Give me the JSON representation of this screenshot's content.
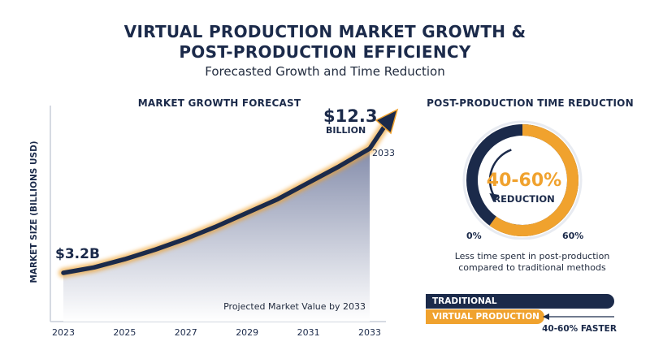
{
  "header": {
    "title_line1": "VIRTUAL PRODUCTION MARKET GROWTH &",
    "title_line2": "POST-PRODUCTION EFFICIENCY",
    "subtitle": "Forecasted Growth and Time Reduction"
  },
  "colors": {
    "navy": "#1b2a4a",
    "orange": "#f0a22e",
    "grey_track": "#cfd4de"
  },
  "chart_data": [
    {
      "type": "area",
      "title": "MARKET GROWTH FORECAST",
      "ylabel": "MARKET SIZE (BILLIONS USD)",
      "xlabel": "",
      "x_ticks": [
        "2023",
        "2025",
        "2027",
        "2029",
        "2031",
        "2033"
      ],
      "series": [
        {
          "x": [
            2023,
            2024,
            2025,
            2026,
            2027,
            2028,
            2029,
            2030,
            2031,
            2032,
            2033
          ],
          "values": [
            3.2,
            3.6,
            4.2,
            4.9,
            5.7,
            6.6,
            7.6,
            8.6,
            9.8,
            11.0,
            12.3
          ]
        }
      ],
      "annotations": {
        "start_label": "$3.2B",
        "end_value": "$12.3",
        "end_unit": "BILLION",
        "end_year": "2033",
        "note": "Projected Market Value by 2033"
      },
      "grid": false
    },
    {
      "type": "pie",
      "title": "POST-PRODUCTION TIME REDUCTION",
      "center_value": "40-60%",
      "center_label": "REDUCTION",
      "ring_min_label": "0%",
      "ring_max_label": "60%",
      "reduction_fraction": 0.6,
      "caption_line1": "Less time spent in post-production",
      "caption_line2": "compared to traditional methods"
    },
    {
      "type": "bar",
      "categories": [
        "TRADITIONAL",
        "VIRTUAL PRODUCTION"
      ],
      "values": [
        1.0,
        0.5
      ],
      "faster_label": "40-60% FASTER"
    }
  ]
}
